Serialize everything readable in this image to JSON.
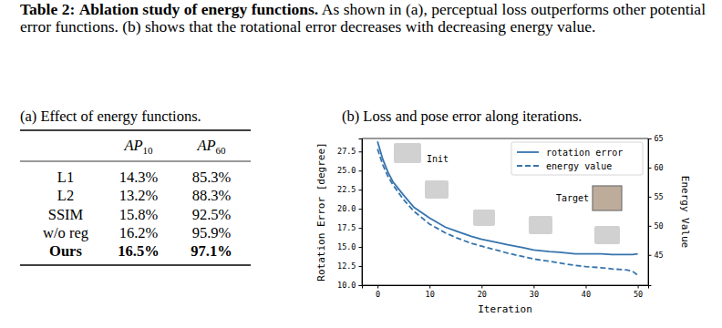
{
  "caption": {
    "label": "Table 2:",
    "title": "Ablation study of energy functions.",
    "text": "As shown in (a), perceptual loss outperforms other potential error functions. (b) shows that the rotational error decreases with decreasing energy value."
  },
  "table": {
    "caption": "(a) Effect of energy functions.",
    "columns": [
      {
        "name": "AP",
        "subscript": "10"
      },
      {
        "name": "AP",
        "subscript": "60"
      }
    ],
    "rows": [
      [
        "L1",
        "14.3%",
        "85.3%"
      ],
      [
        "L2",
        "13.2%",
        "88.3%"
      ],
      [
        "SSIM",
        "15.8%",
        "92.5%"
      ],
      [
        "w/o reg",
        "16.2%",
        "95.9%"
      ],
      [
        "Ours",
        "16.5%",
        "97.1%"
      ]
    ]
  },
  "chart_data": {
    "type": "line",
    "title": "(b) Loss and pose error along iterations.",
    "x_label": "Iteration",
    "y_label": "Rotation Error [degree]",
    "y2_label": "Energy Value",
    "x": [
      0,
      1,
      2,
      3,
      5,
      7,
      10,
      13,
      15,
      18,
      20,
      23,
      25,
      28,
      30,
      33,
      35,
      38,
      40,
      43,
      45,
      48,
      49,
      50
    ],
    "series": [
      {
        "name": "rotation error",
        "color": "#3674ad",
        "line_style": "solid",
        "values": [
          28.8,
          26.5,
          24.8,
          23.5,
          21.8,
          20.2,
          18.8,
          17.6,
          17.1,
          16.4,
          16.0,
          15.6,
          15.3,
          14.9,
          14.6,
          14.4,
          14.3,
          14.1,
          14.1,
          14.1,
          14.0,
          14.0,
          14.0,
          14.1
        ]
      },
      {
        "name": "energy value",
        "color": "#3674ad",
        "line_style": "dashed",
        "axis": "y2",
        "values": [
          63.2,
          60.5,
          58.5,
          57.0,
          54.5,
          52.5,
          50.3,
          48.8,
          48.0,
          47.0,
          46.5,
          45.8,
          45.3,
          44.7,
          44.3,
          43.9,
          43.6,
          43.2,
          43.0,
          42.8,
          42.6,
          42.4,
          42.2,
          41.5
        ]
      }
    ],
    "xlim": [
      -3,
      52
    ],
    "xticks": [
      0,
      10,
      20,
      30,
      40,
      50
    ],
    "ylim": [
      10,
      29.2
    ],
    "yticks": [
      {
        "value": 10,
        "label": "10.0"
      },
      {
        "value": 12.5,
        "label": "12.5"
      },
      {
        "value": 15,
        "label": "15.0"
      },
      {
        "value": 17.5,
        "label": "17.5"
      },
      {
        "value": 20,
        "label": "20.0"
      },
      {
        "value": 22.5,
        "label": "22.5"
      },
      {
        "value": 25,
        "label": "25.0"
      },
      {
        "value": 27.5,
        "label": "27.5"
      }
    ],
    "y2lim": [
      39.8,
      65
    ],
    "y2ticks": [
      45,
      50,
      55,
      60,
      65
    ],
    "legend": "upper right",
    "grid": false,
    "annotations": [
      "Init",
      "Target"
    ]
  }
}
